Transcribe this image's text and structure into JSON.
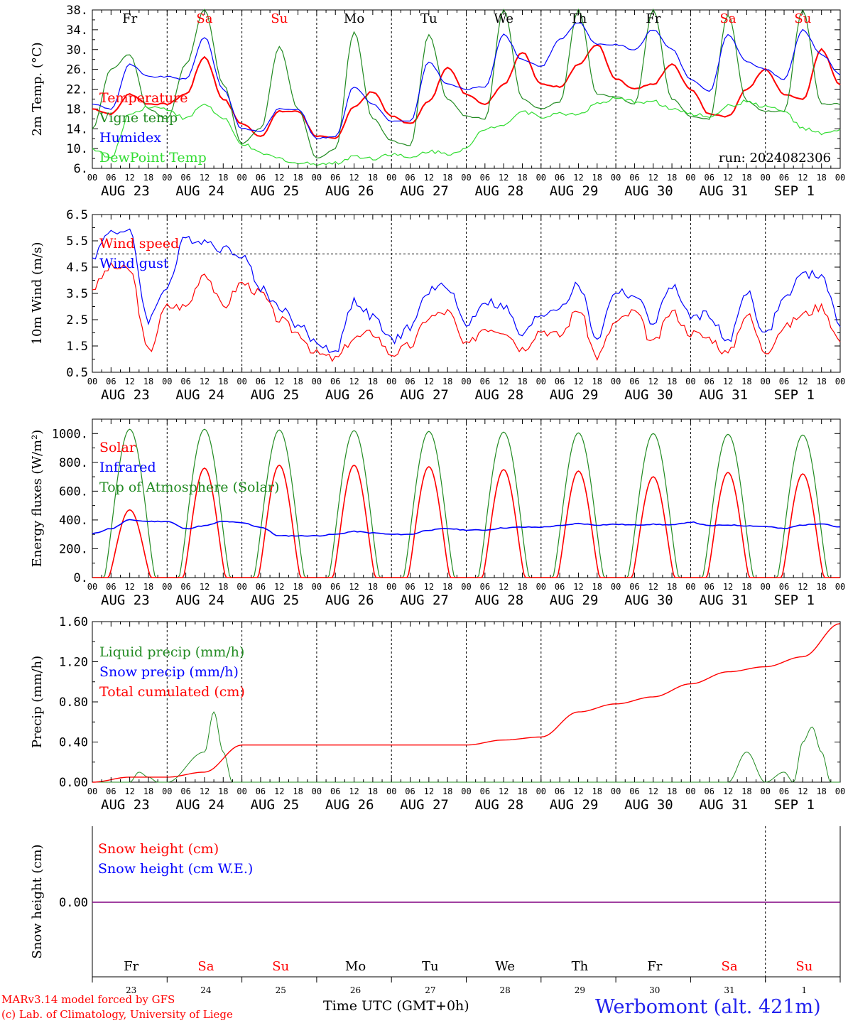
{
  "colors": {
    "red": "#ff0000",
    "green": "#228b22",
    "blue": "#0000ff",
    "lightgreen": "#33dd33",
    "purple": "#800080",
    "frame": "#000000"
  },
  "days": [
    "Fr",
    "Sa",
    "Su",
    "Mo",
    "Tu",
    "We",
    "Th",
    "Fr",
    "Sa",
    "Su"
  ],
  "weekend_days": [
    1,
    2,
    8,
    9
  ],
  "date_labels": [
    "AUG 23",
    "AUG 24",
    "AUG 25",
    "AUG 26",
    "AUG 27",
    "AUG 28",
    "AUG 29",
    "AUG 30",
    "AUG 31",
    "SEP  1"
  ],
  "day_numbers": [
    "23",
    "24",
    "25",
    "26",
    "27",
    "28",
    "29",
    "30",
    "31",
    "1"
  ],
  "hour_ticks": [
    "00",
    "06",
    "12",
    "18"
  ],
  "hour_end": "00",
  "run_label": "run: 2024082306",
  "footer": {
    "model": "MARv3.14 model forced by GFS",
    "lab": "(c) Lab. of Climatology, University of Liege",
    "xlabel": "Time UTC (GMT+0h)",
    "station": "Werbomont (alt. 421m)"
  },
  "chart_data": [
    {
      "type": "line",
      "ylabel": "2m Temp. (°C)",
      "ylim": [
        6,
        38
      ],
      "yticks": [
        "38.",
        "34.",
        "30.",
        "26.",
        "22.",
        "18.",
        "14.",
        "10.",
        "6."
      ],
      "ytick_values": [
        38,
        34,
        30,
        26,
        22,
        18,
        14,
        10,
        6
      ],
      "x_unit": "hours from 2024-08-23 00 UTC",
      "series": [
        {
          "name": "Temperature",
          "color": "red",
          "x": [
            0,
            6,
            12,
            18,
            24,
            30,
            36,
            42,
            48,
            54,
            60,
            66,
            72,
            78,
            84,
            90,
            96,
            102,
            108,
            114,
            120,
            126,
            132,
            138,
            144,
            150,
            156,
            162,
            168,
            174,
            180,
            186,
            192,
            198,
            204,
            210,
            216,
            222,
            228,
            234,
            240
          ],
          "y": [
            18,
            17,
            21,
            19,
            19,
            21,
            28.5,
            20,
            15,
            12.5,
            17.5,
            17.5,
            12.5,
            12,
            18.5,
            21.5,
            16.5,
            15,
            19.5,
            26.5,
            21,
            19,
            23,
            29.5,
            23,
            22.5,
            27,
            31,
            24,
            22,
            23,
            27,
            22,
            17,
            16.5,
            22,
            26,
            21,
            20,
            30,
            23
          ]
        },
        {
          "name": "Vigne temp",
          "color": "green",
          "x": [
            0,
            6,
            12,
            18,
            24,
            30,
            36,
            42,
            48,
            54,
            60,
            66,
            72,
            78,
            84,
            90,
            96,
            102,
            108,
            114,
            120,
            126,
            132,
            138,
            144,
            150,
            156,
            162,
            168,
            174,
            180,
            186,
            192,
            198,
            204,
            210,
            216,
            222,
            228,
            234,
            240
          ],
          "y": [
            14,
            26,
            29,
            18,
            16,
            27,
            38,
            23,
            11,
            14,
            30.5,
            18,
            8,
            10,
            33.5,
            16,
            11.5,
            10.5,
            33,
            20,
            16.5,
            16,
            38,
            20,
            18,
            19.5,
            38,
            21,
            20.5,
            19,
            38,
            20,
            16.5,
            16,
            37,
            19.5,
            17.5,
            17.5,
            38,
            19,
            19
          ]
        },
        {
          "name": "Humidex",
          "color": "blue",
          "x": [
            0,
            6,
            12,
            18,
            24,
            30,
            36,
            42,
            48,
            54,
            60,
            66,
            72,
            78,
            84,
            90,
            96,
            102,
            108,
            114,
            120,
            126,
            132,
            138,
            144,
            150,
            156,
            162,
            168,
            174,
            180,
            186,
            192,
            198,
            204,
            210,
            216,
            222,
            228,
            234,
            240
          ],
          "y": [
            19,
            18,
            27,
            24.5,
            24.5,
            24,
            32.5,
            22,
            14,
            13.5,
            18,
            18,
            12,
            12.5,
            22.5,
            19,
            15.5,
            15.5,
            27.5,
            23,
            22,
            22.5,
            33,
            28,
            26.5,
            32,
            35.5,
            31,
            31,
            30,
            34,
            30,
            24,
            21.5,
            33,
            27.5,
            26,
            24,
            34,
            29,
            25
          ]
        },
        {
          "name": "DewPoint Temp",
          "color": "lightgreen",
          "x": [
            0,
            6,
            12,
            18,
            24,
            30,
            36,
            42,
            48,
            54,
            60,
            66,
            72,
            78,
            84,
            90,
            96,
            102,
            108,
            114,
            120,
            126,
            132,
            138,
            144,
            150,
            156,
            162,
            168,
            174,
            180,
            186,
            192,
            198,
            204,
            210,
            216,
            222,
            228,
            234,
            240
          ],
          "y": [
            10,
            8,
            17,
            18.5,
            18,
            16,
            19,
            16,
            11,
            9,
            8,
            7,
            7,
            7,
            8.5,
            8,
            9,
            8,
            9.5,
            9,
            10,
            14,
            15,
            17.5,
            16.5,
            17,
            17,
            19,
            20,
            19.5,
            19.5,
            18,
            17,
            16.5,
            18.5,
            19.5,
            18.5,
            17.5,
            14,
            13,
            13.5
          ]
        }
      ]
    },
    {
      "type": "line",
      "ylabel": "10m Wind (m/s)",
      "ylim": [
        0.5,
        6.5
      ],
      "yticks": [
        "6.5",
        "5.5",
        "4.5",
        "3.5",
        "2.5",
        "1.5",
        "0.5"
      ],
      "ytick_values": [
        6.5,
        5.5,
        4.5,
        3.5,
        2.5,
        1.5,
        0.5
      ],
      "reference_line": 5,
      "x_unit": "hours from 2024-08-23 00 UTC",
      "series": [
        {
          "name": "Wind speed",
          "color": "red",
          "x": [
            0,
            6,
            12,
            18,
            24,
            30,
            36,
            42,
            48,
            54,
            60,
            66,
            72,
            78,
            84,
            90,
            96,
            102,
            108,
            114,
            120,
            126,
            132,
            138,
            144,
            150,
            156,
            162,
            168,
            174,
            180,
            186,
            192,
            198,
            204,
            210,
            216,
            222,
            228,
            234,
            240
          ],
          "y": [
            3.7,
            4.5,
            4.4,
            1.3,
            3,
            3,
            4.3,
            3,
            3.9,
            3.5,
            2.5,
            2,
            1.2,
            1,
            1.8,
            2,
            1.2,
            1.5,
            2.6,
            2.8,
            1.5,
            2.2,
            2.1,
            1.4,
            2.1,
            1.9,
            2.9,
            1.1,
            2.4,
            2.8,
            1.6,
            2.8,
            2,
            1.8,
            1.2,
            2.7,
            1.3,
            2.2,
            2.7,
            3,
            1.7
          ]
        },
        {
          "name": "Wind gust",
          "color": "blue",
          "x": [
            0,
            6,
            12,
            18,
            24,
            30,
            36,
            42,
            48,
            54,
            60,
            66,
            72,
            78,
            84,
            90,
            96,
            102,
            108,
            114,
            120,
            126,
            132,
            138,
            144,
            150,
            156,
            162,
            168,
            174,
            180,
            186,
            192,
            198,
            204,
            210,
            216,
            222,
            228,
            234,
            240
          ],
          "y": [
            4.9,
            5.9,
            5.8,
            2.5,
            3.8,
            5.6,
            5.5,
            5.2,
            5,
            3.7,
            3,
            2.3,
            1.6,
            1.3,
            3.2,
            2.6,
            1.7,
            2.2,
            3.6,
            3.8,
            2.3,
            3.2,
            3,
            1.9,
            2.7,
            3,
            3.8,
            1.8,
            3.6,
            3.4,
            2.4,
            3.8,
            2.6,
            2.7,
            1.6,
            3.6,
            1.9,
            3.3,
            4.2,
            4.2,
            2.3
          ]
        }
      ]
    },
    {
      "type": "line",
      "ylabel": "Energy fluxes (W/m²)",
      "ylim": [
        0,
        1100
      ],
      "yticks": [
        "1000.",
        "800.",
        "600.",
        "400.",
        "200.",
        "0."
      ],
      "ytick_values": [
        1000,
        800,
        600,
        400,
        200,
        0
      ],
      "x_unit": "hours from 2024-08-23 00 UTC",
      "series": [
        {
          "name": "Solar",
          "color": "red",
          "peaks": [
            470,
            760,
            780,
            780,
            770,
            750,
            740,
            700,
            730,
            720
          ]
        },
        {
          "name": "Infrared",
          "color": "blue",
          "x": [
            0,
            6,
            12,
            18,
            24,
            30,
            36,
            42,
            48,
            54,
            60,
            66,
            72,
            78,
            84,
            90,
            96,
            102,
            108,
            114,
            120,
            126,
            132,
            138,
            144,
            150,
            156,
            162,
            168,
            174,
            180,
            186,
            192,
            198,
            204,
            210,
            216,
            222,
            228,
            234,
            240
          ],
          "y": [
            305,
            340,
            400,
            390,
            390,
            340,
            360,
            390,
            380,
            350,
            290,
            290,
            290,
            300,
            320,
            310,
            300,
            300,
            330,
            340,
            330,
            330,
            345,
            350,
            350,
            360,
            375,
            365,
            370,
            365,
            370,
            365,
            385,
            360,
            365,
            360,
            355,
            340,
            365,
            375,
            350
          ]
        },
        {
          "name": "Top of Atmosphere (Solar)",
          "color": "green",
          "peaks": [
            1030,
            1030,
            1025,
            1020,
            1015,
            1010,
            1005,
            1000,
            995,
            990
          ]
        }
      ]
    },
    {
      "type": "line",
      "ylabel": "Precip (mm/h)",
      "ylim": [
        0,
        1.6
      ],
      "yticks": [
        "1.60",
        "1.20",
        "0.80",
        "0.40",
        "0.00"
      ],
      "ytick_values": [
        1.6,
        1.2,
        0.8,
        0.4,
        0
      ],
      "x_unit": "hours from 2024-08-23 00 UTC",
      "series": [
        {
          "name": "Liquid precip (mm/h)",
          "color": "green",
          "x": [
            0,
            12,
            15,
            18,
            21,
            24,
            36,
            39,
            42,
            45,
            48,
            204,
            210,
            216,
            222,
            225,
            228,
            231,
            234,
            237,
            240
          ],
          "y": [
            0,
            0,
            0.1,
            0.05,
            0,
            0,
            0.3,
            0.7,
            0.3,
            0,
            0,
            0,
            0.3,
            0,
            0.1,
            0,
            0.4,
            0.55,
            0.3,
            0,
            0
          ]
        },
        {
          "name": "Snow precip (mm/h)",
          "color": "blue",
          "x": [
            0,
            240
          ],
          "y": [
            0,
            0
          ]
        },
        {
          "name": "Total cumulated (cm)",
          "color": "red",
          "x": [
            0,
            12,
            24,
            36,
            48,
            60,
            72,
            84,
            96,
            108,
            120,
            132,
            144,
            156,
            168,
            180,
            192,
            204,
            216,
            228,
            240
          ],
          "y": [
            0,
            0.05,
            0.05,
            0.1,
            0.37,
            0.37,
            0.37,
            0.37,
            0.37,
            0.37,
            0.37,
            0.42,
            0.45,
            0.7,
            0.78,
            0.85,
            0.98,
            1.1,
            1.15,
            1.25,
            1.58
          ]
        }
      ]
    },
    {
      "type": "line",
      "ylabel": "Snow height (cm)",
      "ytick": "0.00",
      "series": [
        {
          "name": "Snow height (cm)",
          "color": "red",
          "y": [
            0,
            0
          ]
        },
        {
          "name": "Snow height (cm W.E.)",
          "color": "blue",
          "y": [
            0,
            0
          ]
        }
      ]
    }
  ]
}
